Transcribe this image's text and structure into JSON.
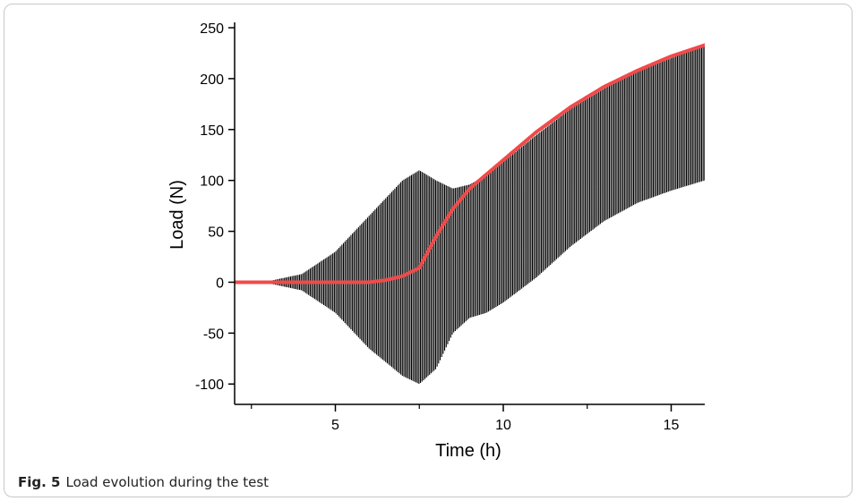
{
  "figure": {
    "label": "Fig. 5",
    "caption": "Load evolution during the test"
  },
  "chart_data": {
    "type": "line",
    "title": "",
    "xlabel": "Time (h)",
    "ylabel": "Load (N)",
    "xlim": [
      2,
      16
    ],
    "ylim": [
      -120,
      250
    ],
    "x_ticks": [
      5,
      10,
      15
    ],
    "x_minor_ticks": [
      2.5,
      7.5,
      12.5
    ],
    "y_ticks": [
      -100,
      -50,
      0,
      50,
      100,
      150,
      200,
      250
    ],
    "grid": false,
    "series": [
      {
        "name": "",
        "style": "oscillating load signal (upper/lower envelope)",
        "color": "#000000",
        "x": [
          2,
          3,
          4,
          5,
          6,
          7,
          7.5,
          8,
          8.5,
          9,
          9.5,
          10,
          11,
          12,
          13,
          14,
          15,
          16
        ],
        "upper": [
          0,
          1,
          8,
          30,
          65,
          100,
          110,
          100,
          92,
          96,
          105,
          118,
          145,
          170,
          190,
          207,
          220,
          233
        ],
        "lower": [
          0,
          -1,
          -8,
          -30,
          -65,
          -92,
          -100,
          -85,
          -50,
          -35,
          -30,
          -20,
          5,
          35,
          60,
          78,
          90,
          100
        ]
      },
      {
        "name": "",
        "style": "mean load",
        "color": "#f04a4a",
        "x": [
          2,
          3,
          4,
          5,
          6,
          6.5,
          7,
          7.5,
          8,
          8.5,
          9,
          9.5,
          10,
          11,
          12,
          13,
          14,
          15,
          16
        ],
        "values": [
          0,
          0,
          0,
          0,
          0,
          2,
          6,
          14,
          45,
          72,
          92,
          106,
          120,
          148,
          172,
          192,
          208,
          222,
          233
        ]
      }
    ]
  }
}
